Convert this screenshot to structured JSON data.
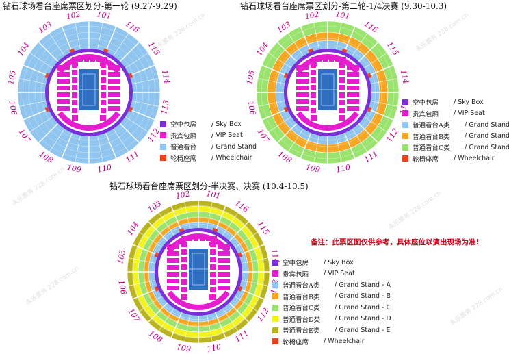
{
  "titles": {
    "round1": "钻石球场看台座席票区划分-第一轮 (9.27-9.29)",
    "round2": "钻石球场看台座席票区划分-第二轮-1/4决赛 (9.30-10.3)",
    "final": "钻石球场看台座席票区划分-半决赛、决赛 (10.4-10.5)"
  },
  "section_labels": [
    "101",
    "116",
    "115",
    "114",
    "113",
    "112",
    "111",
    "110",
    "109",
    "108",
    "107",
    "106",
    "105",
    "104",
    "103",
    "102"
  ],
  "legend1": [
    {
      "zh": "空中包房",
      "en": "/ Sky Box",
      "color": "#7b2fd8"
    },
    {
      "zh": "贵宾包厢",
      "en": "/ VIP Seat",
      "color": "#e61ccf"
    },
    {
      "zh": "普通看台",
      "en": "/ Grand Stand",
      "color": "#8fc5ef"
    },
    {
      "zh": "轮椅座席",
      "en": "/ Wheelchair",
      "color": "#e8431f"
    }
  ],
  "legend2": [
    {
      "zh": "空中包房",
      "en": "/ Sky Box",
      "color": "#7b2fd8"
    },
    {
      "zh": "贵宾包厢",
      "en": "/ VIP Seat",
      "color": "#e61ccf"
    },
    {
      "zh": "普通看台A类",
      "en": "/ Grand Stand - A",
      "color": "#8fc5ef"
    },
    {
      "zh": "普通看台B类",
      "en": "/ Grand Stand - B",
      "color": "#f5a623"
    },
    {
      "zh": "普通看台C类",
      "en": "/ Grand Stand - C",
      "color": "#9be36f"
    },
    {
      "zh": "轮椅座席",
      "en": "/ Wheelchair",
      "color": "#e8431f"
    }
  ],
  "legend3": [
    {
      "zh": "空中包房",
      "en": "/ Sky Box",
      "color": "#7b2fd8"
    },
    {
      "zh": "贵宾包厢",
      "en": "/ VIP Seat",
      "color": "#e61ccf"
    },
    {
      "zh": "普通看台A类",
      "en": "/ Grand Stand - A",
      "color": "#8fc5ef"
    },
    {
      "zh": "普通看台B类",
      "en": "/ Grand Stand - B",
      "color": "#f5a623"
    },
    {
      "zh": "普通看台C类",
      "en": "/ Grand Stand - C",
      "color": "#9be36f"
    },
    {
      "zh": "普通看台D类",
      "en": "/ Grand Stand - D",
      "color": "#f2f21e"
    },
    {
      "zh": "普通看台E类",
      "en": "/ Grand Stand - E",
      "color": "#b9b320"
    },
    {
      "zh": "轮椅座席",
      "en": "/ Wheelchair",
      "color": "#e8431f"
    }
  ],
  "note": "备注：此票区图仅供参考，具体座位以演出现场为准!",
  "watermark": "永乐票务 228.com.cn"
}
